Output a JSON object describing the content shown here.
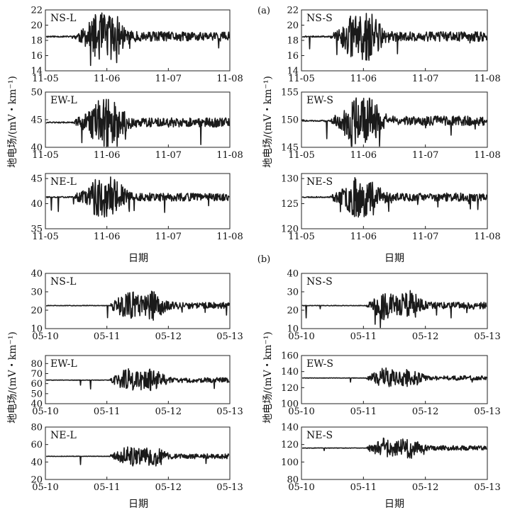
{
  "figure": {
    "section_a_label": "(a)",
    "section_b_label": "(b)",
    "ylabel": "地电场/(mV・km⁻¹)",
    "xlabel": "日期"
  },
  "chart_data": [
    {
      "type": "line",
      "section": "a",
      "title": "NS-L",
      "xticks": [
        "11-05",
        "11-06",
        "11-07",
        "11-08"
      ],
      "yticks": [
        "14",
        "16",
        "18",
        "20",
        "22"
      ],
      "ylim": [
        14,
        22
      ],
      "baseline": 18.5,
      "onset": 0.15,
      "peaks": [
        0.28,
        0.37
      ],
      "amp": 2.2,
      "quiet": 0.25,
      "seed": 11
    },
    {
      "type": "line",
      "section": "a",
      "title": "EW-L",
      "xticks": [
        "11-05",
        "11-06",
        "11-07",
        "11-08"
      ],
      "yticks": [
        "40",
        "45",
        "50"
      ],
      "ylim": [
        40,
        50
      ],
      "baseline": 44.5,
      "onset": 0.15,
      "peaks": [
        0.28,
        0.37
      ],
      "amp": 3.0,
      "quiet": 0.3,
      "seed": 12
    },
    {
      "type": "line",
      "section": "a",
      "title": "NE-L",
      "xticks": [
        "11-05",
        "11-06",
        "11-07",
        "11-08"
      ],
      "yticks": [
        "35",
        "40",
        "45"
      ],
      "ylim": [
        35,
        46
      ],
      "baseline": 41.3,
      "onset": 0.15,
      "peaks": [
        0.28,
        0.37
      ],
      "amp": 2.8,
      "quiet": 0.3,
      "seed": 13
    },
    {
      "type": "line",
      "section": "a",
      "title": "NS-S",
      "xticks": [
        "11-05",
        "11-06",
        "11-07",
        "11-08"
      ],
      "yticks": [
        "14",
        "16",
        "18",
        "20",
        "22"
      ],
      "ylim": [
        14,
        22
      ],
      "baseline": 18.5,
      "onset": 0.15,
      "peaks": [
        0.28,
        0.37
      ],
      "amp": 2.2,
      "quiet": 0.25,
      "seed": 21
    },
    {
      "type": "line",
      "section": "a",
      "title": "EW-S",
      "xticks": [
        "11-05",
        "11-06",
        "11-07",
        "11-08"
      ],
      "yticks": [
        "145",
        "150",
        "155"
      ],
      "ylim": [
        145,
        155
      ],
      "baseline": 149.8,
      "onset": 0.15,
      "peaks": [
        0.28,
        0.37
      ],
      "amp": 3.0,
      "quiet": 0.3,
      "seed": 22
    },
    {
      "type": "line",
      "section": "a",
      "title": "NE-S",
      "xticks": [
        "11-05",
        "11-06",
        "11-07",
        "11-08"
      ],
      "yticks": [
        "120",
        "125",
        "130"
      ],
      "ylim": [
        120,
        131
      ],
      "baseline": 126.3,
      "onset": 0.15,
      "peaks": [
        0.28,
        0.37
      ],
      "amp": 2.8,
      "quiet": 0.3,
      "seed": 23
    },
    {
      "type": "line",
      "section": "b",
      "title": "NS-L",
      "xticks": [
        "05-10",
        "05-11",
        "05-12",
        "05-13"
      ],
      "yticks": [
        "10",
        "20",
        "30",
        "40"
      ],
      "ylim": [
        10,
        40
      ],
      "baseline": 22.5,
      "onset": 0.345,
      "peaks": [
        0.45,
        0.58
      ],
      "amp": 6.5,
      "quiet": 0.4,
      "seed": 31
    },
    {
      "type": "line",
      "section": "b",
      "title": "EW-L",
      "xticks": [
        "05-10",
        "05-11",
        "05-12",
        "05-13"
      ],
      "yticks": [
        "40",
        "50",
        "60",
        "70",
        "80"
      ],
      "ylim": [
        40,
        88
      ],
      "baseline": 63.5,
      "onset": 0.345,
      "peaks": [
        0.45,
        0.58
      ],
      "amp": 9.0,
      "quiet": 0.6,
      "seed": 32
    },
    {
      "type": "line",
      "section": "b",
      "title": "NE-L",
      "xticks": [
        "05-10",
        "05-11",
        "05-12",
        "05-13"
      ],
      "yticks": [
        "20",
        "40",
        "60",
        "80"
      ],
      "ylim": [
        20,
        80
      ],
      "baseline": 46.5,
      "onset": 0.345,
      "peaks": [
        0.45,
        0.58
      ],
      "amp": 10.0,
      "quiet": 0.7,
      "seed": 33
    },
    {
      "type": "line",
      "section": "b",
      "title": "NS-S",
      "xticks": [
        "05-10",
        "05-11",
        "05-12",
        "05-13"
      ],
      "yticks": [
        "10",
        "20",
        "30",
        "40"
      ],
      "ylim": [
        10,
        40
      ],
      "baseline": 22.5,
      "onset": 0.345,
      "peaks": [
        0.45,
        0.58
      ],
      "amp": 6.5,
      "quiet": 0.4,
      "seed": 41
    },
    {
      "type": "line",
      "section": "b",
      "title": "EW-S",
      "xticks": [
        "05-10",
        "05-11",
        "05-12",
        "05-13"
      ],
      "yticks": [
        "100",
        "120",
        "140",
        "160"
      ],
      "ylim": [
        100,
        160
      ],
      "baseline": 132,
      "onset": 0.345,
      "peaks": [
        0.45,
        0.58
      ],
      "amp": 10.0,
      "quiet": 0.8,
      "seed": 42
    },
    {
      "type": "line",
      "section": "b",
      "title": "NE-S",
      "xticks": [
        "05-10",
        "05-11",
        "05-12",
        "05-13"
      ],
      "yticks": [
        "80",
        "100",
        "120",
        "140"
      ],
      "ylim": [
        80,
        140
      ],
      "baseline": 116,
      "onset": 0.345,
      "peaks": [
        0.45,
        0.58
      ],
      "amp": 10.0,
      "quiet": 0.7,
      "seed": 43
    }
  ]
}
